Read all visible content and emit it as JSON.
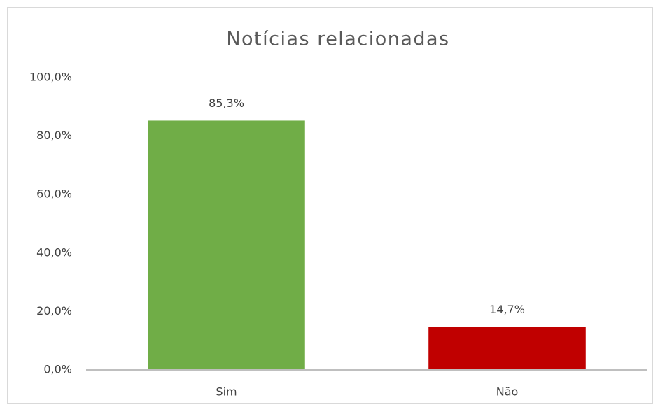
{
  "chart_data": {
    "type": "bar",
    "title": "Notícias relacionadas",
    "categories": [
      "Sim",
      "Não"
    ],
    "values": [
      85.3,
      14.7
    ],
    "value_labels": [
      "85,3%",
      "14,7%"
    ],
    "colors": [
      "#70ad47",
      "#c00000"
    ],
    "ylim": [
      0,
      100
    ],
    "yticks": [
      {
        "value": 0,
        "label": "0,0%"
      },
      {
        "value": 20,
        "label": "20,0%"
      },
      {
        "value": 40,
        "label": "40,0%"
      },
      {
        "value": 60,
        "label": "60,0%"
      },
      {
        "value": 80,
        "label": "80,0%"
      },
      {
        "value": 100,
        "label": "100,0%"
      }
    ],
    "grid": false
  }
}
